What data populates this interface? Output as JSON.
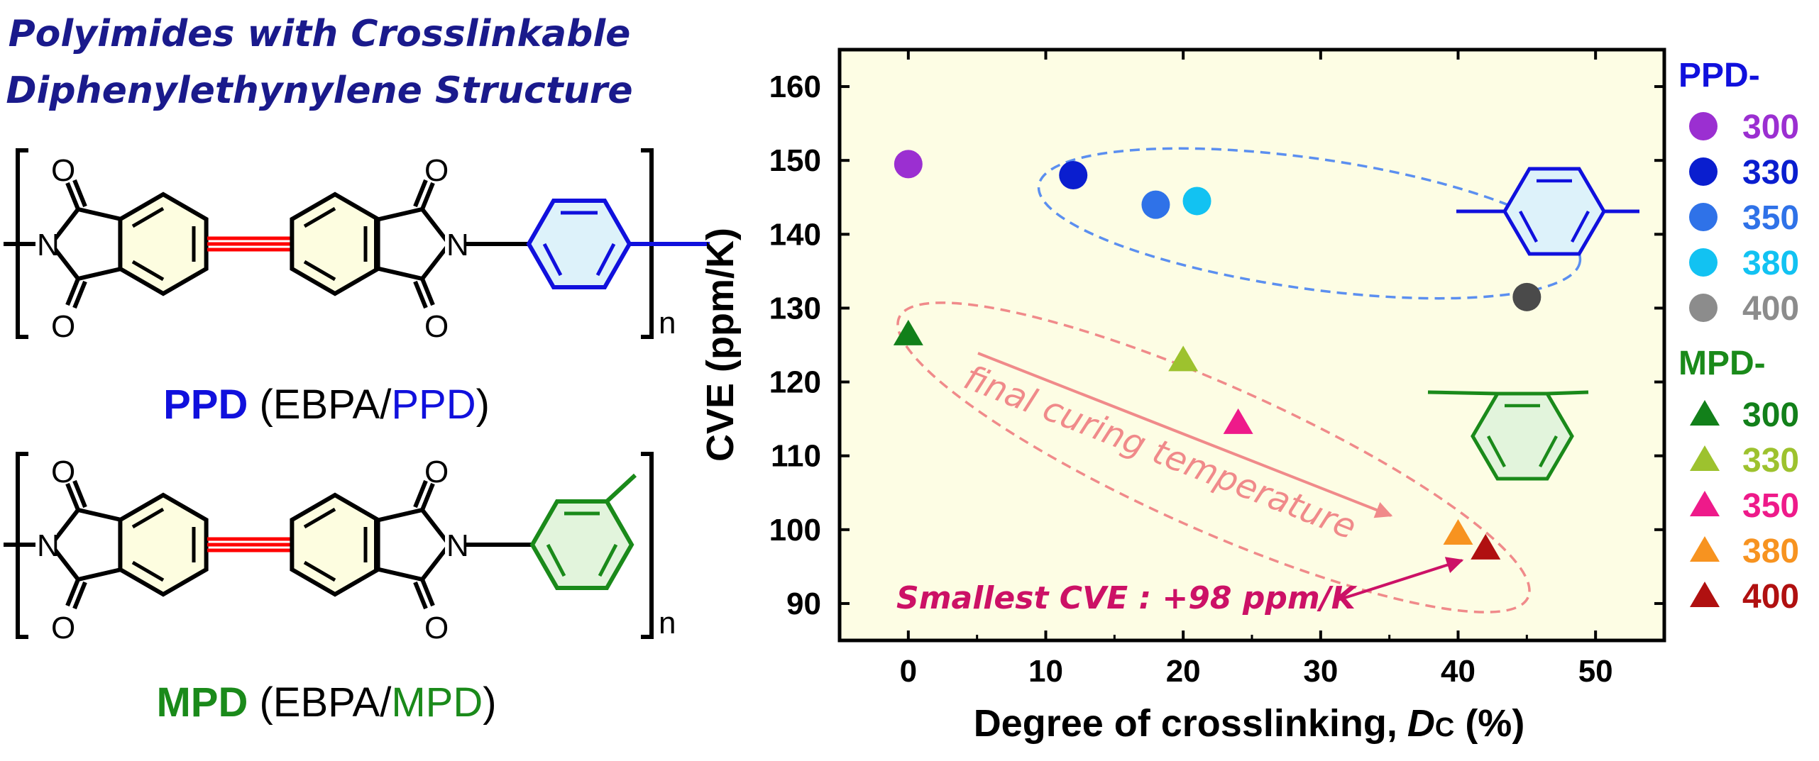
{
  "title_line1": "Polyimides with Crosslinkable",
  "title_line2": "Diphenylethynylene Structure",
  "atoms": {
    "oxygen": "O",
    "nitrogen": "N",
    "repeat_unit": "n"
  },
  "ppd_label": {
    "bold": "PPD",
    "paren_open": " (EBPA/",
    "colored": "PPD",
    "paren_close": ")"
  },
  "mpd_label": {
    "bold": "MPD",
    "paren_open": " (EBPA/",
    "colored": "MPD",
    "paren_close": ")"
  },
  "colors": {
    "title": "#1a1a8c",
    "ppd_blue": "#1010dd",
    "mpd_green": "#1a8a1a",
    "triple_bond": "#ff0000",
    "plot_bg": "#fdfde4",
    "ppd_ellipse": "#5b8ff0",
    "mpd_ellipse": "#f08a8a",
    "arrow_text": "#f08a8a",
    "smallest_cve": "#cc1166"
  },
  "chart_data": {
    "type": "scatter",
    "xlabel_main": "Degree of crosslinking,",
    "xlabel_italic": "D",
    "xlabel_sub": "C",
    "xlabel_unit": " (%)",
    "ylabel": "CVE (ppm/K)",
    "xlim": [
      -5,
      55
    ],
    "ylim": [
      85,
      165
    ],
    "xticks": [
      0,
      10,
      20,
      30,
      40,
      50
    ],
    "yticks": [
      90,
      100,
      110,
      120,
      130,
      140,
      150,
      160
    ],
    "series": [
      {
        "group": "PPD-",
        "marker": "circle",
        "points": [
          {
            "label": "300",
            "x": 0,
            "y": 149.5,
            "color": "#9b2fd1"
          },
          {
            "label": "330",
            "x": 12,
            "y": 148,
            "color": "#0a1ecf"
          },
          {
            "label": "350",
            "x": 18,
            "y": 144,
            "color": "#2f72e8"
          },
          {
            "label": "380",
            "x": 21,
            "y": 144.5,
            "color": "#12c2f2"
          },
          {
            "label": "400",
            "x": 45,
            "y": 131.5,
            "color": "#4a4a4a"
          }
        ]
      },
      {
        "group": "MPD-",
        "marker": "triangle",
        "points": [
          {
            "label": "300",
            "x": 0,
            "y": 126.5,
            "color": "#12801a"
          },
          {
            "label": "330",
            "x": 20,
            "y": 123,
            "color": "#9dc22e"
          },
          {
            "label": "350",
            "x": 24,
            "y": 114.5,
            "color": "#ee1a8a"
          },
          {
            "label": "380",
            "x": 40,
            "y": 99.5,
            "color": "#f79320"
          },
          {
            "label": "400",
            "x": 42,
            "y": 97.5,
            "color": "#b01010"
          }
        ]
      }
    ],
    "legend": {
      "ppd_title": "PPD-",
      "mpd_title": "MPD-",
      "ppd_items": [
        {
          "label": "300",
          "color": "#9b2fd1"
        },
        {
          "label": "330",
          "color": "#0a1ecf"
        },
        {
          "label": "350",
          "color": "#2f72e8"
        },
        {
          "label": "380",
          "color": "#12c2f2"
        },
        {
          "label": "400",
          "color": "#8c8c8c"
        }
      ],
      "mpd_items": [
        {
          "label": "300",
          "color": "#12801a"
        },
        {
          "label": "330",
          "color": "#9dc22e"
        },
        {
          "label": "350",
          "color": "#ee1a8a"
        },
        {
          "label": "380",
          "color": "#f79320"
        },
        {
          "label": "400",
          "color": "#b01010"
        }
      ]
    },
    "annotations": {
      "arrow_text": "final curing temperature",
      "smallest": "Smallest CVE : +98 ppm/K"
    }
  }
}
